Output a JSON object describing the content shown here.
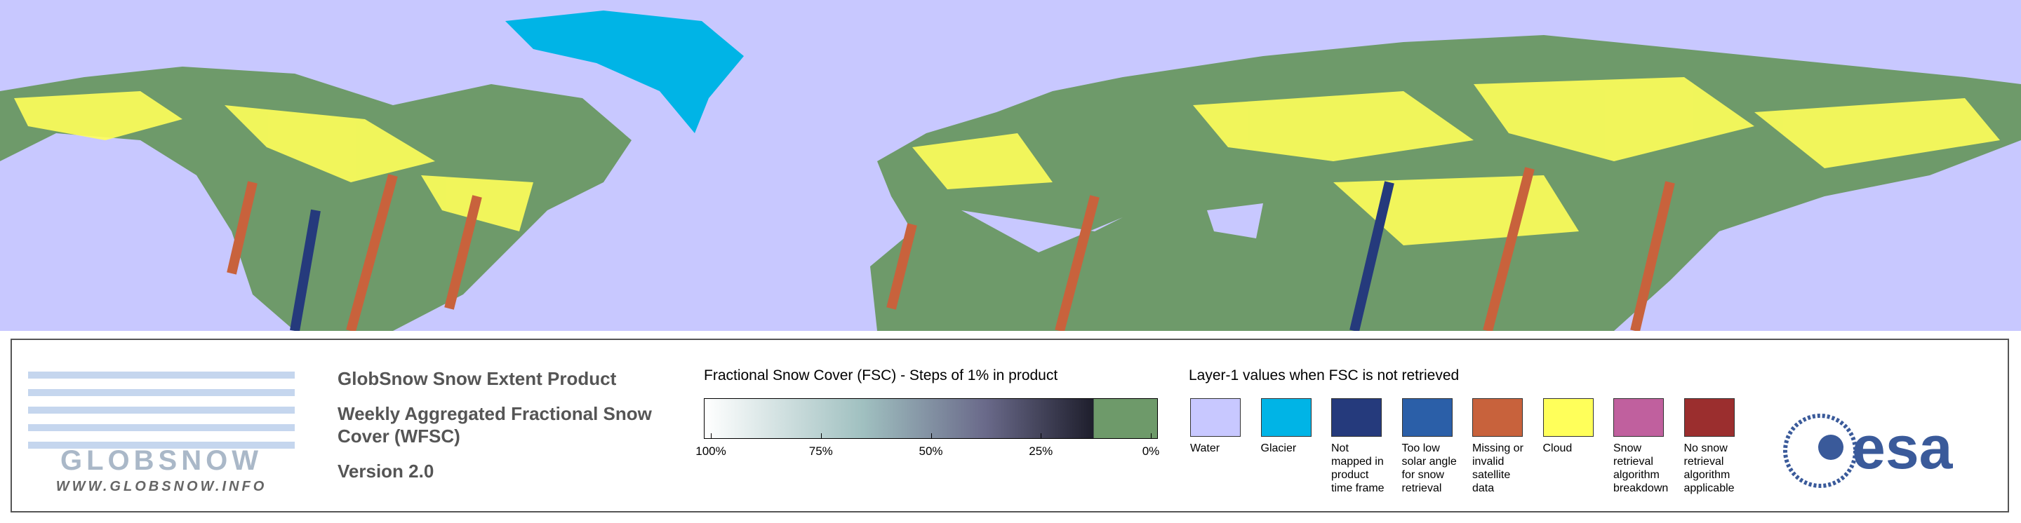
{
  "header": {
    "title": "GlobSnow Snow Extent Product",
    "subtitle": "Weekly Aggregated Fractional Snow Cover (WFSC)",
    "version": "Version 2.0"
  },
  "logo": {
    "name": "GLOBSNOW",
    "url": "WWW.GLOBSNOW.INFO",
    "agency": "esa"
  },
  "colorbar": {
    "title": "Fractional Snow Cover (FSC) - Steps of 1% in product",
    "ticks": [
      {
        "value": 100,
        "label": "100%"
      },
      {
        "value": 75,
        "label": "75%"
      },
      {
        "value": 50,
        "label": "50%"
      },
      {
        "value": 25,
        "label": "25%"
      },
      {
        "value": 0,
        "label": "0%"
      }
    ]
  },
  "legend": {
    "title": "Layer-1 values when FSC is not retrieved",
    "items": [
      {
        "label": "Water",
        "color": "#c8c8ff"
      },
      {
        "label": "Glacier",
        "color": "#00b4e6"
      },
      {
        "label": "Not mapped in product time frame",
        "color": "#253a7c"
      },
      {
        "label": "Too low solar angle for snow retrieval",
        "color": "#2b5fa8"
      },
      {
        "label": "Missing or invalid satellite data",
        "color": "#c8623c"
      },
      {
        "label": "Cloud",
        "color": "#ffff5a"
      },
      {
        "label": "Snow retrieval algorithm breakdown",
        "color": "#c0609e"
      },
      {
        "label": "No snow retrieval algorithm applicable",
        "color": "#9b2e2e"
      }
    ]
  }
}
